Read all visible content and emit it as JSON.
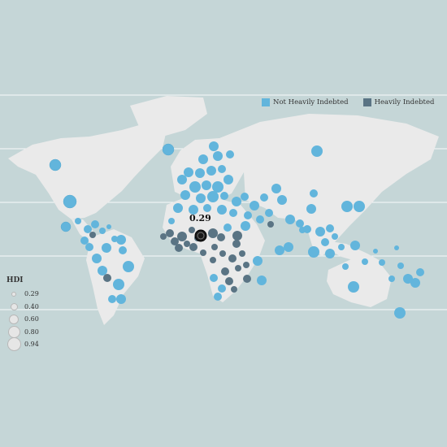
{
  "legend": {
    "not_indebted_label": "Not Heavily Indebted",
    "indebted_label": "Heavily Indebted"
  },
  "colors": {
    "ocean": "#c5d6d7",
    "land": "#eaeaea",
    "not_indebted": "#62b5dc",
    "indebted": "#5a7484",
    "selected": "#1a1a1a"
  },
  "hdi_legend": {
    "title": "HDI",
    "items": [
      {
        "label": "0.29",
        "value": 0.29
      },
      {
        "label": "0.40",
        "value": 0.4
      },
      {
        "label": "0.60",
        "value": 0.6
      },
      {
        "label": "0.80",
        "value": 0.8
      },
      {
        "label": "0.94",
        "value": 0.94
      }
    ]
  },
  "tooltip": {
    "value": "0.29"
  }
}
